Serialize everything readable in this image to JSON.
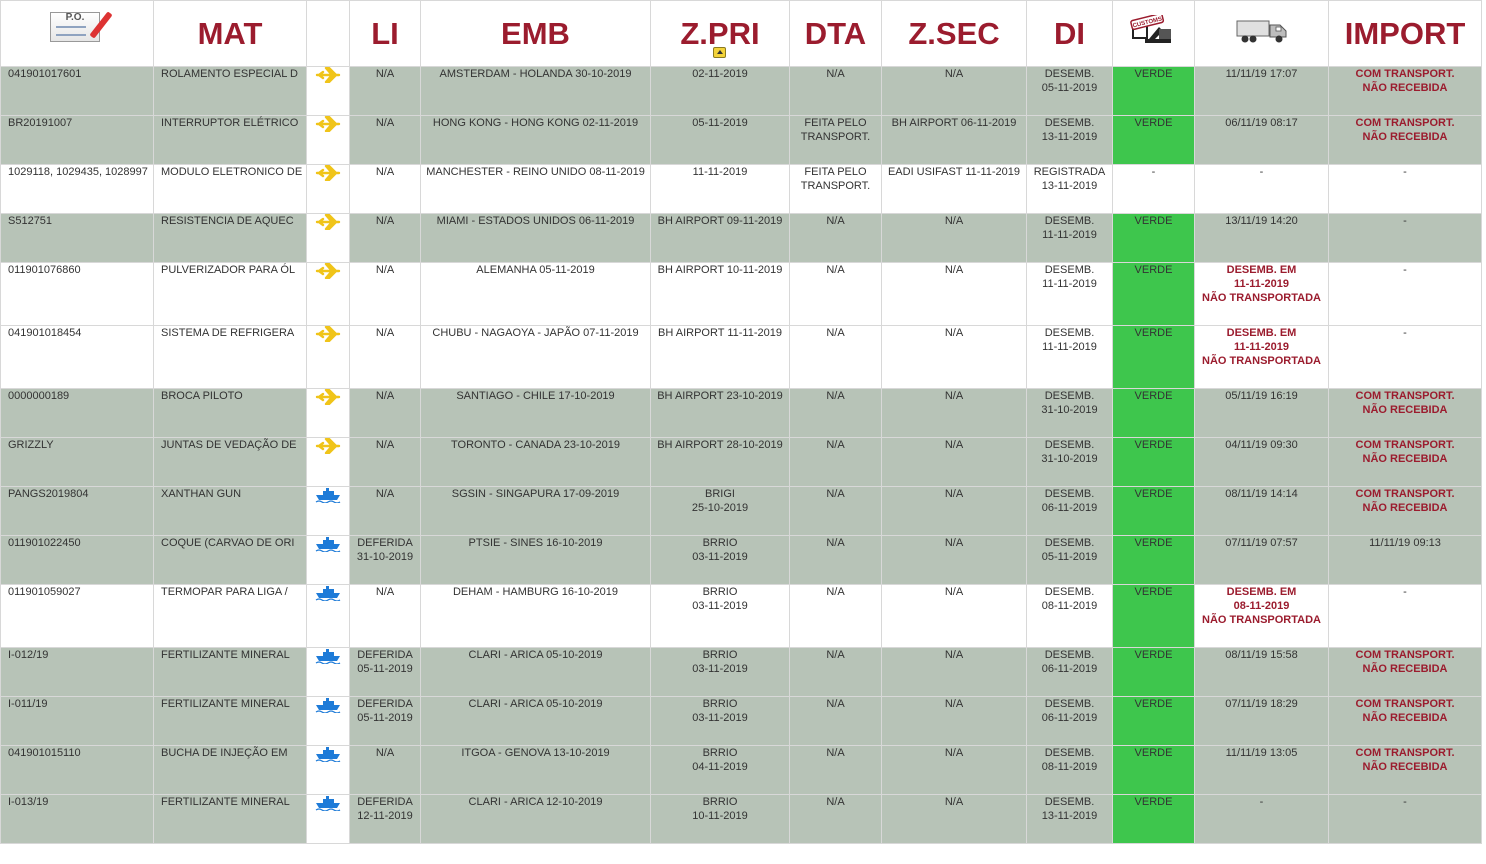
{
  "header": {
    "po_label": "P.O.",
    "mat": "MAT",
    "li": "LI",
    "emb": "EMB",
    "zpri": "Z.PRI",
    "dta": "DTA",
    "zsec": "Z.SEC",
    "di": "DI",
    "customs_label": "CUSTOMS",
    "import": "IMPORT"
  },
  "colors": {
    "brand": "#9b1c2e",
    "row_gray": "#b7c3b7",
    "verde": "#3ec64d",
    "air_icon": "#f0c419",
    "sea_icon": "#1e7bd8"
  },
  "rows": [
    {
      "po": "041901017601",
      "mat": "ROLAMENTO ESPECIAL D",
      "modal": "airplane-icon",
      "li": [
        "N/A"
      ],
      "emb": "AMSTERDAM - HOLANDA 30-10-2019",
      "zpri": [
        "02-11-2019"
      ],
      "dta": [
        "N/A"
      ],
      "zsec": "N/A",
      "di": [
        "DESEMB.",
        "05-11-2019"
      ],
      "canal": "VERDE",
      "transp": [
        "11/11/19 17:07"
      ],
      "transp_alert": false,
      "imp": [
        "COM TRANSPORT.",
        "NÃO RECEBIDA"
      ],
      "imp_alert": true
    },
    {
      "po": "BR20191007",
      "mat": "INTERRUPTOR ELÉTRICO",
      "modal": "airplane-icon",
      "li": [
        "N/A"
      ],
      "emb": "HONG KONG - HONG KONG 02-11-2019",
      "zpri": [
        "05-11-2019"
      ],
      "dta": [
        "FEITA PELO",
        "TRANSPORT."
      ],
      "zsec": "BH AIRPORT 06-11-2019",
      "di": [
        "DESEMB.",
        "13-11-2019"
      ],
      "canal": "VERDE",
      "transp": [
        "06/11/19 08:17"
      ],
      "transp_alert": false,
      "imp": [
        "COM TRANSPORT.",
        "NÃO RECEBIDA"
      ],
      "imp_alert": true
    },
    {
      "po": "1029118, 1029435, 1028997",
      "mat": "MODULO ELETRONICO DE",
      "modal": "airplane-icon",
      "li": [
        "N/A"
      ],
      "emb": "MANCHESTER - REINO UNIDO 08-11-2019",
      "zpri": [
        "11-11-2019"
      ],
      "dta": [
        "FEITA PELO",
        "TRANSPORT."
      ],
      "zsec": "EADI USIFAST 11-11-2019",
      "di": [
        "REGISTRADA",
        "13-11-2019"
      ],
      "canal": "-",
      "transp": [
        "-"
      ],
      "transp_alert": false,
      "imp": [
        "-"
      ],
      "imp_alert": false
    },
    {
      "po": "S512751",
      "mat": "RESISTENCIA DE AQUEC",
      "modal": "airplane-icon",
      "li": [
        "N/A"
      ],
      "emb": "MIAMI - ESTADOS UNIDOS 06-11-2019",
      "zpri": [
        "BH AIRPORT 09-11-2019"
      ],
      "dta": [
        "N/A"
      ],
      "zsec": "N/A",
      "di": [
        "DESEMB.",
        "11-11-2019"
      ],
      "canal": "VERDE",
      "transp": [
        "13/11/19 14:20"
      ],
      "transp_alert": false,
      "imp": [
        "-"
      ],
      "imp_alert": false
    },
    {
      "po": "011901076860",
      "mat": "PULVERIZADOR PARA ÓL",
      "modal": "airplane-icon",
      "li": [
        "N/A"
      ],
      "emb": "ALEMANHA 05-11-2019",
      "zpri": [
        "BH AIRPORT 10-11-2019"
      ],
      "dta": [
        "N/A"
      ],
      "zsec": "N/A",
      "di": [
        "DESEMB.",
        "11-11-2019"
      ],
      "canal": "VERDE",
      "transp": [
        "DESEMB. EM",
        "11-11-2019",
        "NÃO TRANSPORTADA"
      ],
      "transp_alert": true,
      "imp": [
        "-"
      ],
      "imp_alert": false
    },
    {
      "po": "041901018454",
      "mat": "SISTEMA DE REFRIGERA",
      "modal": "airplane-icon",
      "li": [
        "N/A"
      ],
      "emb": "CHUBU - NAGAOYA - JAPÃO 07-11-2019",
      "zpri": [
        "BH AIRPORT 11-11-2019"
      ],
      "dta": [
        "N/A"
      ],
      "zsec": "N/A",
      "di": [
        "DESEMB.",
        "11-11-2019"
      ],
      "canal": "VERDE",
      "transp": [
        "DESEMB. EM",
        "11-11-2019",
        "NÃO TRANSPORTADA"
      ],
      "transp_alert": true,
      "imp": [
        "-"
      ],
      "imp_alert": false
    },
    {
      "po": "0000000189",
      "mat": "BROCA PILOTO",
      "modal": "airplane-icon",
      "li": [
        "N/A"
      ],
      "emb": "SANTIAGO - CHILE 17-10-2019",
      "zpri": [
        "BH AIRPORT 23-10-2019"
      ],
      "dta": [
        "N/A"
      ],
      "zsec": "N/A",
      "di": [
        "DESEMB.",
        "31-10-2019"
      ],
      "canal": "VERDE",
      "transp": [
        "05/11/19 16:19"
      ],
      "transp_alert": false,
      "imp": [
        "COM TRANSPORT.",
        "NÃO RECEBIDA"
      ],
      "imp_alert": true
    },
    {
      "po": "GRIZZLY",
      "mat": "JUNTAS DE VEDAÇÃO DE",
      "modal": "airplane-icon",
      "li": [
        "N/A"
      ],
      "emb": "TORONTO - CANADA 23-10-2019",
      "zpri": [
        "BH AIRPORT 28-10-2019"
      ],
      "dta": [
        "N/A"
      ],
      "zsec": "N/A",
      "di": [
        "DESEMB.",
        "31-10-2019"
      ],
      "canal": "VERDE",
      "transp": [
        "04/11/19 09:30"
      ],
      "transp_alert": false,
      "imp": [
        "COM TRANSPORT.",
        "NÃO RECEBIDA"
      ],
      "imp_alert": true
    },
    {
      "po": "PANGS2019804",
      "mat": "XANTHAN GUN",
      "modal": "ship-icon",
      "li": [
        "N/A"
      ],
      "emb": "SGSIN - SINGAPURA 17-09-2019",
      "zpri": [
        "BRIGI",
        "25-10-2019"
      ],
      "dta": [
        "N/A"
      ],
      "zsec": "N/A",
      "di": [
        "DESEMB.",
        "06-11-2019"
      ],
      "canal": "VERDE",
      "transp": [
        "08/11/19 14:14"
      ],
      "transp_alert": false,
      "imp": [
        "COM TRANSPORT.",
        "NÃO RECEBIDA"
      ],
      "imp_alert": true
    },
    {
      "po": "011901022450",
      "mat": "COQUE (CARVAO DE ORI",
      "modal": "ship-icon",
      "li": [
        "DEFERIDA",
        "31-10-2019"
      ],
      "emb": "PTSIE - SINES 16-10-2019",
      "zpri": [
        "BRRIO",
        "03-11-2019"
      ],
      "dta": [
        "N/A"
      ],
      "zsec": "N/A",
      "di": [
        "DESEMB.",
        "05-11-2019"
      ],
      "canal": "VERDE",
      "transp": [
        "07/11/19 07:57"
      ],
      "transp_alert": false,
      "imp": [
        "11/11/19 09:13"
      ],
      "imp_alert": false
    },
    {
      "po": "011901059027",
      "mat": "TERMOPAR PARA LIGA /",
      "modal": "ship-icon",
      "li": [
        "N/A"
      ],
      "emb": "DEHAM - HAMBURG 16-10-2019",
      "zpri": [
        "BRRIO",
        "03-11-2019"
      ],
      "dta": [
        "N/A"
      ],
      "zsec": "N/A",
      "di": [
        "DESEMB.",
        "08-11-2019"
      ],
      "canal": "VERDE",
      "transp": [
        "DESEMB. EM",
        "08-11-2019",
        "NÃO TRANSPORTADA"
      ],
      "transp_alert": true,
      "imp": [
        "-"
      ],
      "imp_alert": false
    },
    {
      "po": "I-012/19",
      "mat": "FERTILIZANTE MINERAL",
      "modal": "ship-icon",
      "li": [
        "DEFERIDA",
        "05-11-2019"
      ],
      "emb": "CLARI - ARICA 05-10-2019",
      "zpri": [
        "BRRIO",
        "03-11-2019"
      ],
      "dta": [
        "N/A"
      ],
      "zsec": "N/A",
      "di": [
        "DESEMB.",
        "06-11-2019"
      ],
      "canal": "VERDE",
      "transp": [
        "08/11/19 15:58"
      ],
      "transp_alert": false,
      "imp": [
        "COM TRANSPORT.",
        "NÃO RECEBIDA"
      ],
      "imp_alert": true
    },
    {
      "po": "I-011/19",
      "mat": "FERTILIZANTE MINERAL",
      "modal": "ship-icon",
      "li": [
        "DEFERIDA",
        "05-11-2019"
      ],
      "emb": "CLARI - ARICA 05-10-2019",
      "zpri": [
        "BRRIO",
        "03-11-2019"
      ],
      "dta": [
        "N/A"
      ],
      "zsec": "N/A",
      "di": [
        "DESEMB.",
        "06-11-2019"
      ],
      "canal": "VERDE",
      "transp": [
        "07/11/19 18:29"
      ],
      "transp_alert": false,
      "imp": [
        "COM TRANSPORT.",
        "NÃO RECEBIDA"
      ],
      "imp_alert": true
    },
    {
      "po": "041901015110",
      "mat": "BUCHA DE INJEÇÃO EM",
      "modal": "ship-icon",
      "li": [
        "N/A"
      ],
      "emb": "ITGOA - GENOVA 13-10-2019",
      "zpri": [
        "BRRIO",
        "04-11-2019"
      ],
      "dta": [
        "N/A"
      ],
      "zsec": "N/A",
      "di": [
        "DESEMB.",
        "08-11-2019"
      ],
      "canal": "VERDE",
      "transp": [
        "11/11/19 13:05"
      ],
      "transp_alert": false,
      "imp": [
        "COM TRANSPORT.",
        "NÃO RECEBIDA"
      ],
      "imp_alert": true
    },
    {
      "po": "I-013/19",
      "mat": "FERTILIZANTE MINERAL",
      "modal": "ship-icon",
      "li": [
        "DEFERIDA",
        "12-11-2019"
      ],
      "emb": "CLARI - ARICA 12-10-2019",
      "zpri": [
        "BRRIO",
        "10-11-2019"
      ],
      "dta": [
        "N/A"
      ],
      "zsec": "N/A",
      "di": [
        "DESEMB.",
        "13-11-2019"
      ],
      "canal": "VERDE",
      "transp": [
        "-"
      ],
      "transp_alert": false,
      "imp": [
        "-"
      ],
      "imp_alert": false
    }
  ]
}
